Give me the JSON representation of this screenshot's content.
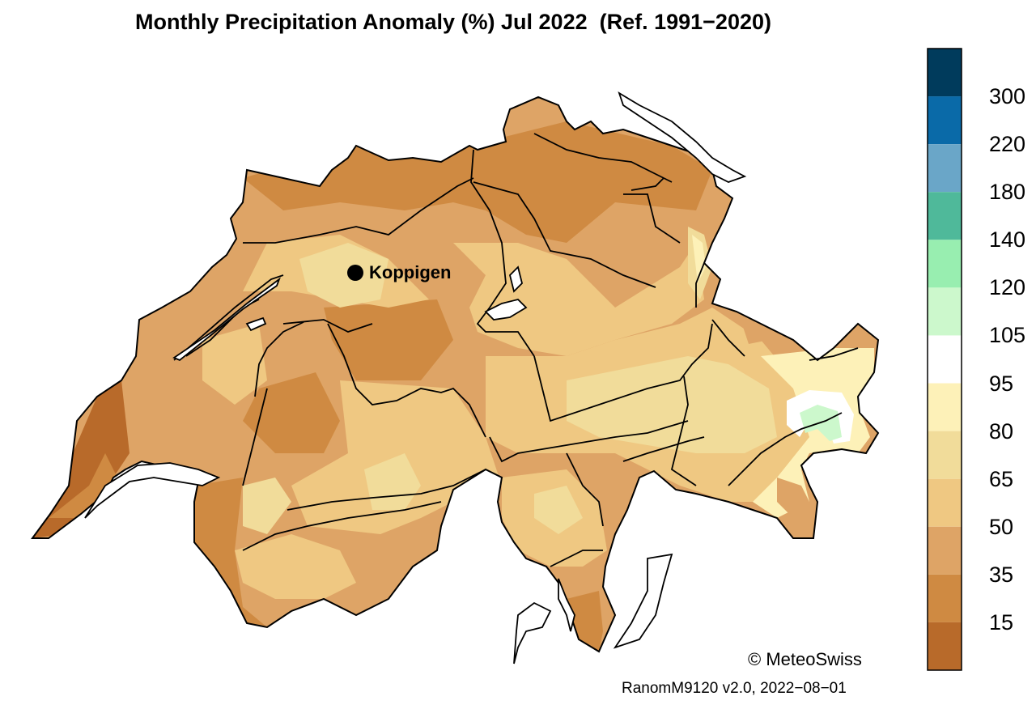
{
  "map": {
    "title": "Monthly Precipitation Anomaly (%) Jul 2022  (Ref. 1991−2020)",
    "station": {
      "name": "Koppigen"
    },
    "copyright": "© MeteoSwiss",
    "version": "RanomM9120 v2.0, 2022−08−01"
  },
  "legend": {
    "classes": [
      {
        "color": "#003b5c"
      },
      {
        "color": "#0a6aa8"
      },
      {
        "color": "#6aa6c8"
      },
      {
        "color": "#4fb99a"
      },
      {
        "color": "#98eeb0"
      },
      {
        "color": "#ccf8cc"
      },
      {
        "color": "#ffffff"
      },
      {
        "color": "#fdf1b8"
      },
      {
        "color": "#f1dc9a"
      },
      {
        "color": "#efc882"
      },
      {
        "color": "#dea466"
      },
      {
        "color": "#cf8a42"
      },
      {
        "color": "#b86a2a"
      }
    ],
    "labels": [
      "300",
      "220",
      "180",
      "140",
      "120",
      "105",
      "95",
      "80",
      "65",
      "50",
      "35",
      "15"
    ]
  }
}
